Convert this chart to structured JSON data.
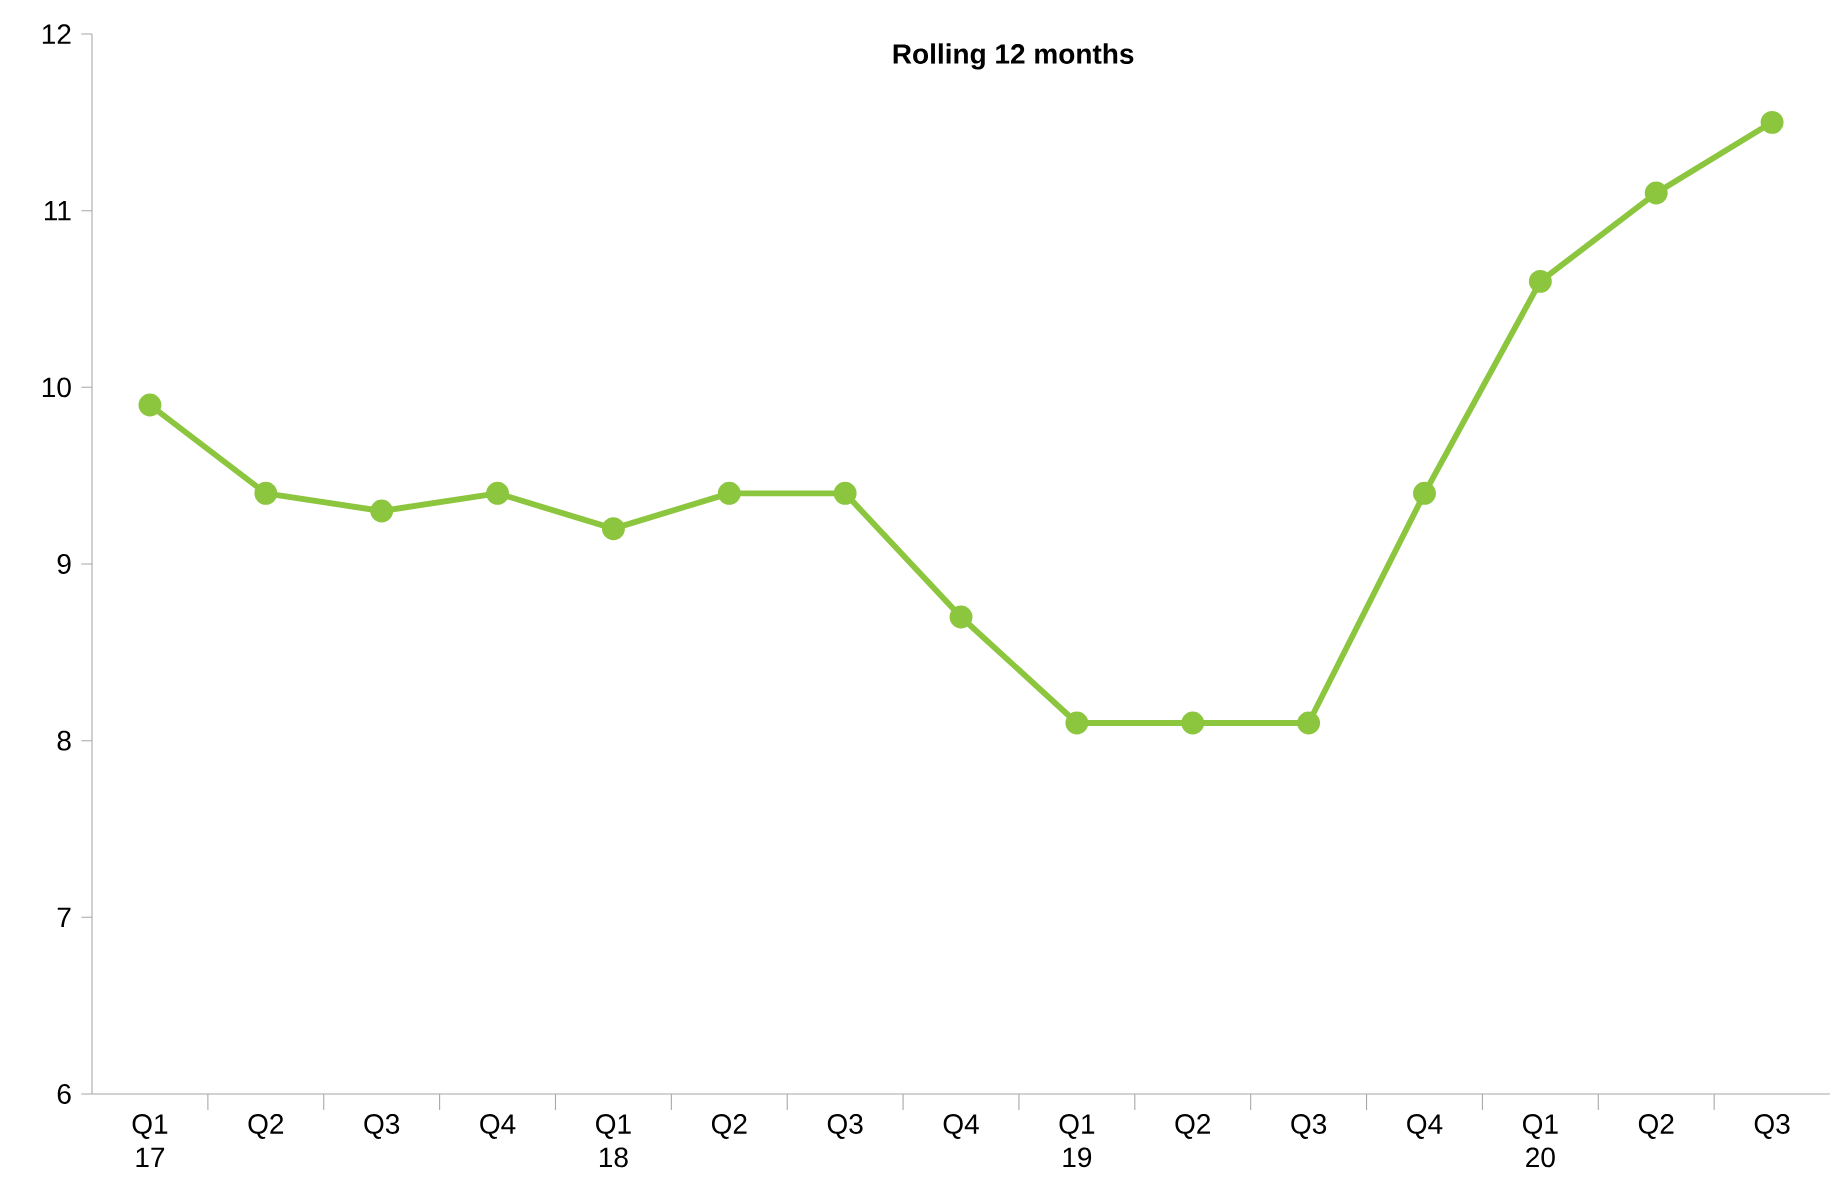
{
  "chart_data": {
    "type": "line",
    "title": "Rolling 12 months",
    "categories": [
      "Q1 17",
      "Q2",
      "Q3",
      "Q4",
      "Q1 18",
      "Q2",
      "Q3",
      "Q4",
      "Q1 19",
      "Q2",
      "Q3",
      "Q4",
      "Q1 20",
      "Q2",
      "Q3"
    ],
    "values": [
      9.9,
      9.4,
      9.3,
      9.4,
      9.2,
      9.4,
      9.4,
      8.7,
      8.1,
      8.1,
      8.1,
      9.4,
      10.6,
      11.1,
      11.5
    ],
    "color": "#8cc63f",
    "marker": "circle",
    "line_style": "solid",
    "ylim": [
      6,
      12
    ],
    "yticks": [
      6,
      7,
      8,
      9,
      10,
      11,
      12
    ],
    "grid": false
  }
}
